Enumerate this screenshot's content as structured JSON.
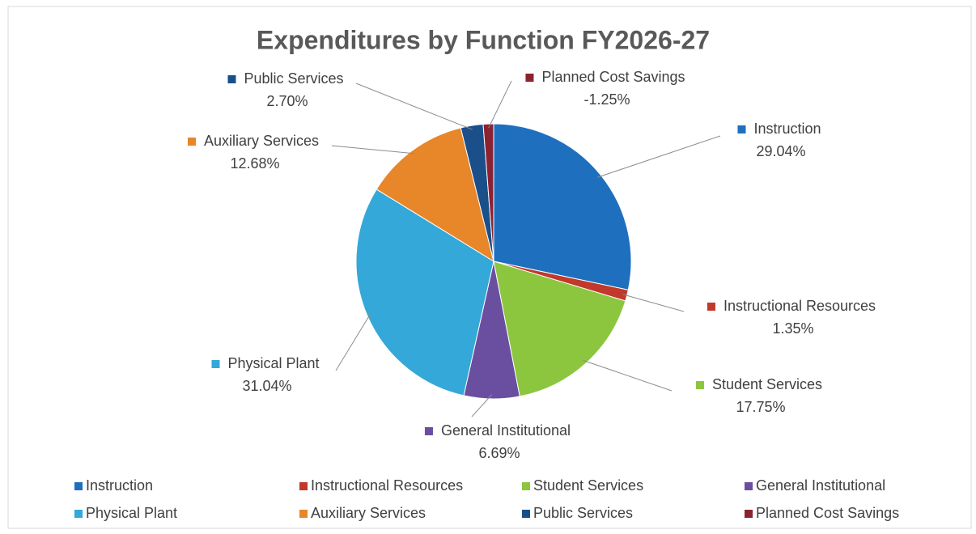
{
  "chart_data": {
    "type": "pie",
    "title": "Expenditures by Function  FY2026-27",
    "categories": [
      "Instruction",
      "Instructional Resources",
      "Student Services",
      "General Institutional",
      "Physical Plant",
      "Auxiliary Services",
      "Public Services",
      "Planned Cost Savings"
    ],
    "values": [
      29.04,
      1.35,
      17.75,
      6.69,
      31.04,
      12.68,
      2.7,
      -1.25
    ],
    "value_labels": [
      "29.04%",
      "1.35%",
      "17.75%",
      "6.69%",
      "31.04%",
      "12.68%",
      "2.70%",
      "-1.25%"
    ],
    "colors": [
      "#1f6fbf",
      "#c0392b",
      "#8cc63f",
      "#6a4fa0",
      "#34a8d8",
      "#e8862a",
      "#1a4f8a",
      "#8b2232"
    ],
    "legend": "bottom"
  }
}
